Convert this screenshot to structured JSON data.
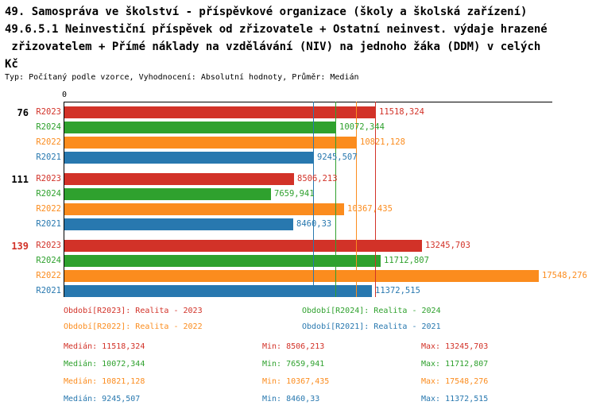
{
  "title": {
    "lines": [
      "49. Samospráva ve školství - příspěvkové organizace (školy a školská zařízení)",
      "49.6.5.1 Neinvestiční příspěvek od zřizovatele + Ostatní neinvest. výdaje hrazené",
      " zřizovatelem + Přímé náklady na vzdělávání (NIV) na jednoho žáka (DDM) v celých",
      "Kč"
    ],
    "subtitle": "Typ: Počítaný podle vzorce, Vyhodnocení: Absolutní hodnoty, Průměr: Medián"
  },
  "colors": {
    "R2023": "#d23228",
    "R2024": "#2fa12e",
    "R2022": "#fb8c1e",
    "R2021": "#2878af",
    "axis": "#000000"
  },
  "chart_data": {
    "type": "bar",
    "orientation": "horizontal",
    "x_origin_label": "0",
    "x_max": 18000,
    "grid": "median-lines-only",
    "series_order": [
      "R2023",
      "R2024",
      "R2022",
      "R2021"
    ],
    "groups": [
      {
        "label": "76",
        "label_color": "#000000",
        "bars": [
          {
            "series": "R2023",
            "value": 11518.324,
            "value_label": "11518,324"
          },
          {
            "series": "R2024",
            "value": 10072.344,
            "value_label": "10072,344"
          },
          {
            "series": "R2022",
            "value": 10821.128,
            "value_label": "10821,128"
          },
          {
            "series": "R2021",
            "value": 9245.507,
            "value_label": "9245,507"
          }
        ]
      },
      {
        "label": "111",
        "label_color": "#000000",
        "bars": [
          {
            "series": "R2023",
            "value": 8506.213,
            "value_label": "8506,213"
          },
          {
            "series": "R2024",
            "value": 7659.941,
            "value_label": "7659,941"
          },
          {
            "series": "R2022",
            "value": 10367.435,
            "value_label": "10367,435"
          },
          {
            "series": "R2021",
            "value": 8460.33,
            "value_label": "8460,33"
          }
        ]
      },
      {
        "label": "139",
        "label_color": "#d23228",
        "bars": [
          {
            "series": "R2023",
            "value": 13245.703,
            "value_label": "13245,703"
          },
          {
            "series": "R2024",
            "value": 11712.807,
            "value_label": "11712,807"
          },
          {
            "series": "R2022",
            "value": 17548.276,
            "value_label": "17548,276"
          },
          {
            "series": "R2021",
            "value": 11372.515,
            "value_label": "11372,515"
          }
        ]
      }
    ],
    "median_lines": [
      {
        "series": "R2023",
        "value": 11518.324
      },
      {
        "series": "R2024",
        "value": 10072.344
      },
      {
        "series": "R2022",
        "value": 10821.128
      },
      {
        "series": "R2021",
        "value": 9245.507
      }
    ]
  },
  "legend": {
    "items": [
      {
        "series": "R2023",
        "label": "Období[R2023]: Realita - 2023"
      },
      {
        "series": "R2024",
        "label": "Období[R2024]: Realita - 2024"
      },
      {
        "series": "R2022",
        "label": "Období[R2022]: Realita - 2022"
      },
      {
        "series": "R2021",
        "label": "Období[R2021]: Realita - 2021"
      }
    ]
  },
  "stats": {
    "rows": [
      {
        "series": "R2023",
        "median": "Medián: 11518,324",
        "min": "Min: 8506,213",
        "max": "Max: 13245,703"
      },
      {
        "series": "R2024",
        "median": "Medián: 10072,344",
        "min": "Min: 7659,941",
        "max": "Max: 11712,807"
      },
      {
        "series": "R2022",
        "median": "Medián: 10821,128",
        "min": "Min: 10367,435",
        "max": "Max: 17548,276"
      },
      {
        "series": "R2021",
        "median": "Medián: 9245,507",
        "min": "Min: 8460,33",
        "max": "Max: 11372,515"
      }
    ]
  }
}
